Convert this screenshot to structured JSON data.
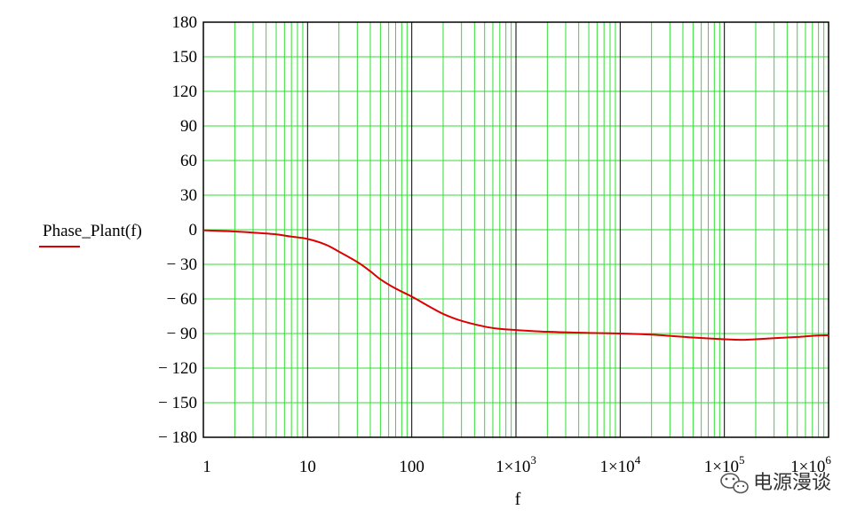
{
  "chart_data": {
    "type": "line",
    "xlabel": "f",
    "ylabel": "Phase_Plant(f)",
    "x_scale": "log",
    "xlim": [
      1,
      1000000
    ],
    "ylim": [
      -180,
      180
    ],
    "y_ticks": [
      180,
      150,
      120,
      90,
      60,
      30,
      0,
      -30,
      -60,
      -90,
      -120,
      -150,
      -180
    ],
    "x_tick_labels": [
      {
        "value": 1,
        "mant": "1",
        "exp": ""
      },
      {
        "value": 10,
        "mant": "10",
        "exp": ""
      },
      {
        "value": 100,
        "mant": "100",
        "exp": ""
      },
      {
        "value": 1000,
        "mant": "1×10",
        "exp": "3"
      },
      {
        "value": 10000,
        "mant": "1×10",
        "exp": "4"
      },
      {
        "value": 100000,
        "mant": "1×10",
        "exp": "5"
      },
      {
        "value": 1000000,
        "mant": "1×10",
        "exp": "6"
      }
    ],
    "grid": {
      "minor": true,
      "major": true,
      "minor_color": "#33dd33",
      "major_color": "#000000"
    },
    "series": [
      {
        "name": "Phase_Plant(f)",
        "color": "#dd0000",
        "points": [
          [
            1,
            -0.5
          ],
          [
            2,
            -1.5
          ],
          [
            3,
            -2.5
          ],
          [
            5,
            -4
          ],
          [
            7,
            -6
          ],
          [
            10,
            -8
          ],
          [
            15,
            -13
          ],
          [
            20,
            -19
          ],
          [
            30,
            -28
          ],
          [
            40,
            -36
          ],
          [
            50,
            -43
          ],
          [
            70,
            -51
          ],
          [
            100,
            -58
          ],
          [
            150,
            -67
          ],
          [
            200,
            -73
          ],
          [
            300,
            -79
          ],
          [
            500,
            -84
          ],
          [
            700,
            -86
          ],
          [
            1000,
            -87
          ],
          [
            2000,
            -88.5
          ],
          [
            5000,
            -89.5
          ],
          [
            10000,
            -90
          ],
          [
            20000,
            -91
          ],
          [
            50000,
            -93.5
          ],
          [
            100000,
            -95
          ],
          [
            150000,
            -95.5
          ],
          [
            200000,
            -95
          ],
          [
            300000,
            -94
          ],
          [
            500000,
            -93
          ],
          [
            700000,
            -92
          ],
          [
            1000000,
            -91.5
          ]
        ]
      }
    ],
    "legend": {
      "position": "left",
      "label": "Phase_Plant(f)"
    }
  },
  "watermark": "电源漫谈"
}
